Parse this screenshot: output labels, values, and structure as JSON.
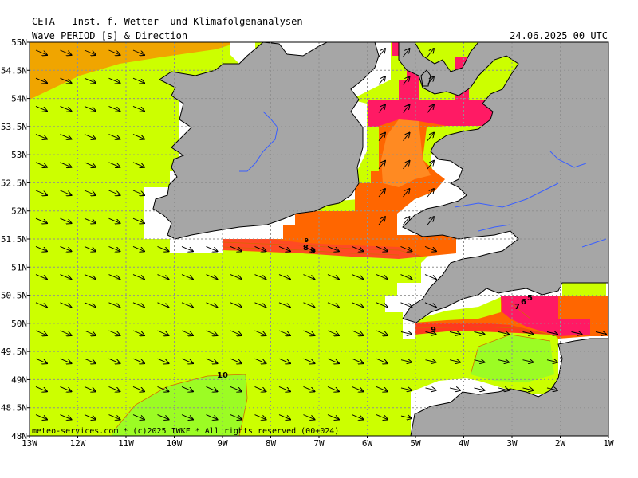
{
  "header": {
    "institute": "CETA — Inst. f. Wetter— und Klimafolgenanalysen —",
    "title": "Wave_PERIOD_[s]_&_Direction",
    "datetime": "24.06.2025 00 UTC"
  },
  "footer": {
    "copyright": "meteo-services.com * (c)2025 IWKF * All rights reserved (00+024)"
  },
  "axes": {
    "lat_labels": [
      "55N",
      "54.5N",
      "54N",
      "53.5N",
      "53N",
      "52.5N",
      "52N",
      "51.5N",
      "51N",
      "50.5N",
      "50N",
      "49.5N",
      "49N",
      "48.5N",
      "48N"
    ],
    "lon_labels": [
      "13W",
      "12W",
      "11W",
      "10W",
      "9W",
      "8W",
      "7W",
      "6W",
      "5W",
      "4W",
      "3W",
      "2W",
      "1W"
    ]
  },
  "contour_labels": [
    "10",
    "8",
    "9",
    "9",
    "5",
    "6",
    "7",
    "9"
  ],
  "colors": {
    "land": "#a6a6a6",
    "period_11": "#f0a500",
    "period_9_10": "#ccff00",
    "period_8_9": "#9cfc24",
    "period_7": "#ff6600",
    "period_6": "#ff3a1e",
    "period_5": "#ff1a64",
    "shallow": "#ffffff",
    "grid": "#909090",
    "river": "#3a5fff"
  }
}
